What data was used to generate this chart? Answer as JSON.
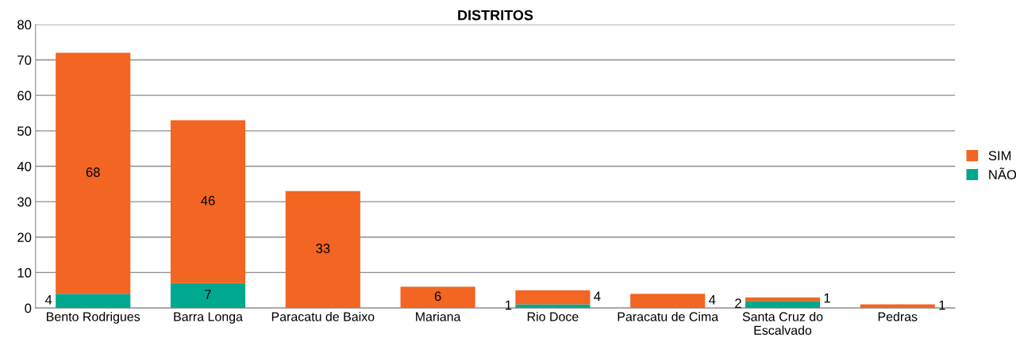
{
  "chart_data": {
    "type": "bar",
    "title": "DISTRITOS",
    "stacked": true,
    "categories": [
      "Bento Rodrigues",
      "Barra Longa",
      "Paracatu de Baixo",
      "Mariana",
      "Rio Doce",
      "Paracatu de Cima",
      "Santa Cruz do\nEscalvado",
      "Pedras"
    ],
    "series": [
      {
        "name": "NÃO",
        "color": "#00a88f",
        "values": [
          4,
          7,
          0,
          0,
          1,
          0,
          2,
          0
        ],
        "value_labels": [
          "4",
          "7",
          null,
          null,
          "1",
          null,
          "2",
          null
        ]
      },
      {
        "name": "SIM",
        "color": "#f26522",
        "values": [
          68,
          46,
          33,
          6,
          4,
          4,
          1,
          1
        ],
        "value_labels": [
          "68",
          "46",
          "33",
          "6",
          "4",
          "4",
          "1",
          "1"
        ]
      }
    ],
    "ylim": [
      0,
      80
    ],
    "yticks": [
      0,
      10,
      20,
      30,
      40,
      50,
      60,
      70,
      80
    ],
    "grid": "y",
    "legend": "right"
  }
}
